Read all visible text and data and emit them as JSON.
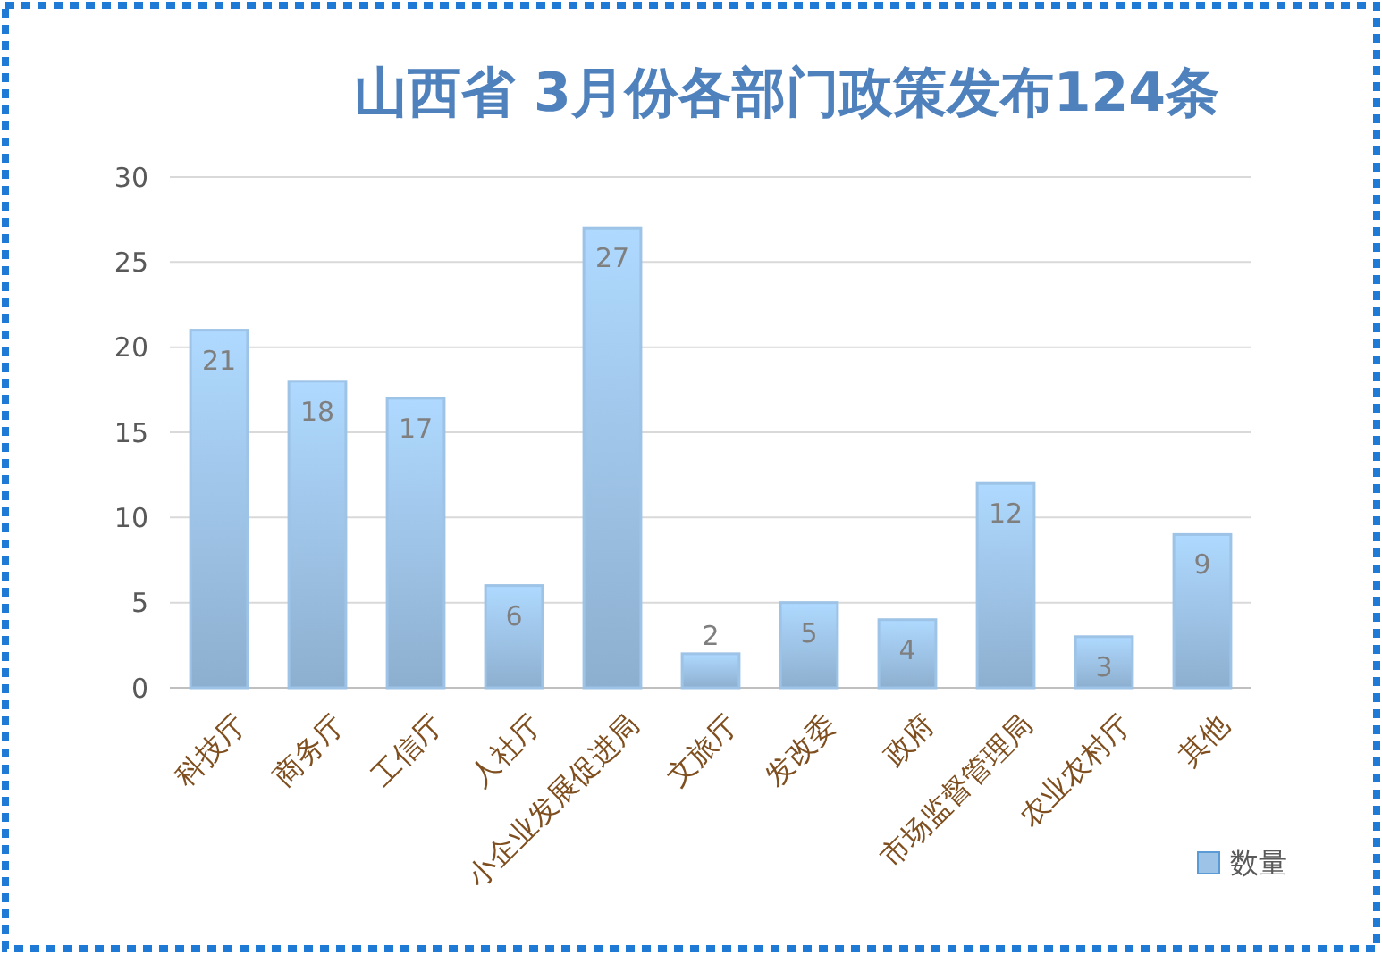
{
  "chart_data": {
    "type": "bar",
    "title": "山西省 3月份各部门政策发布124条",
    "categories": [
      "科技厅",
      "商务厅",
      "工信厅",
      "人社厅",
      "小企业发展促进局",
      "文旅厅",
      "发改委",
      "政府",
      "市场监督管理局",
      "农业农村厅",
      "其他"
    ],
    "series": [
      {
        "name": "数量",
        "color": "#9dc3e6",
        "values": [
          21,
          18,
          17,
          6,
          27,
          2,
          5,
          4,
          12,
          3,
          9
        ]
      }
    ],
    "ylim": [
      0,
      30
    ],
    "yticks": [
      0,
      5,
      10,
      15,
      20,
      25,
      30
    ],
    "grid": "y",
    "legend": "bottom right",
    "data_labels": true
  }
}
